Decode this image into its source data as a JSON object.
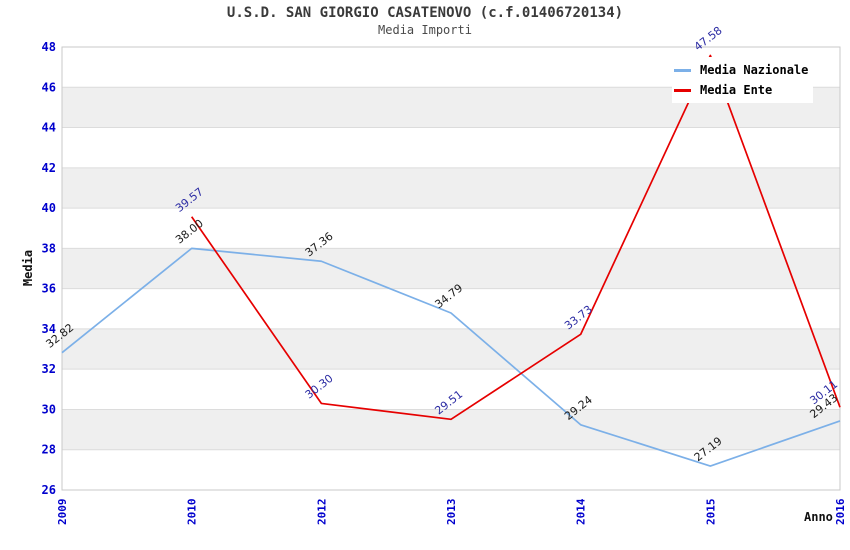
{
  "title": "U.S.D. SAN GIORGIO CASATENOVO (c.f.01406720134)",
  "subtitle": "Media Importi",
  "chart_data": {
    "type": "line",
    "categories": [
      "2009",
      "2010",
      "2012",
      "2013",
      "2014",
      "2015",
      "2016"
    ],
    "series": [
      {
        "name": "Media Nazionale",
        "color": "#7CB0E8",
        "label_color": "#1A1A1A",
        "values": [
          32.82,
          38.0,
          37.36,
          34.79,
          29.24,
          27.19,
          29.43
        ]
      },
      {
        "name": "Media Ente",
        "color": "#E60000",
        "label_color": "#2B2BA3",
        "values": [
          null,
          39.57,
          30.3,
          29.51,
          33.73,
          47.58,
          30.11
        ]
      }
    ],
    "xlabel": "Anno",
    "ylabel": "Media",
    "ylim": [
      26,
      48
    ],
    "ytick_step": 2,
    "yticks": [
      26,
      28,
      30,
      32,
      34,
      36,
      38,
      40,
      42,
      44,
      46,
      48
    ],
    "grid": true,
    "legend_position": "top-right",
    "value_label_rotation_deg": -38,
    "colors": {
      "tick_label": "#0000CD",
      "band_gray": "#EFEFEF",
      "gridline": "#DCDCDC",
      "plot_border": "#C9C9C9",
      "background": "#FFFFFF"
    }
  }
}
